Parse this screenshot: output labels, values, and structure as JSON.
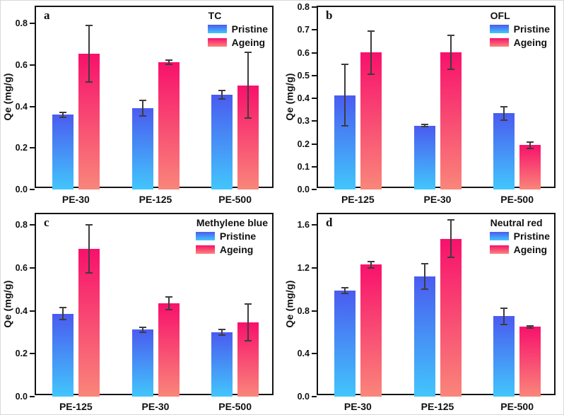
{
  "figure": {
    "series_labels": [
      "Pristine",
      "Ageing"
    ],
    "colors": {
      "pristine_top": "#4a5bf0",
      "pristine_bottom": "#42c6fc",
      "ageing_top": "#f8116c",
      "ageing_bottom": "#f9867a",
      "frame": "#141414",
      "error_bar": "#3d3d3d"
    }
  },
  "chart_data": [
    {
      "type": "bar",
      "panel": "a",
      "legend_title": "TC",
      "ylabel": "Qe (mg/g)",
      "legend_position": "top-right",
      "grid": false,
      "categories": [
        "PE-30",
        "PE-125",
        "PE-500"
      ],
      "series": [
        {
          "name": "Pristine",
          "values": [
            0.36,
            0.392,
            0.458
          ],
          "errors": [
            0.012,
            0.038,
            0.02
          ]
        },
        {
          "name": "Ageing",
          "values": [
            0.655,
            0.615,
            0.503
          ],
          "errors": [
            0.138,
            0.01,
            0.158
          ]
        }
      ],
      "ylim": [
        0,
        0.88
      ],
      "yticks": [
        0.0,
        0.2,
        0.4,
        0.6,
        0.8
      ],
      "ytick_labels": [
        "0.0",
        "0.2",
        "0.4",
        "0.6",
        "0.8"
      ]
    },
    {
      "type": "bar",
      "panel": "b",
      "legend_title": "OFL",
      "ylabel": "Qe (mg/g)",
      "legend_position": "top-right",
      "grid": false,
      "categories": [
        "PE-125",
        "PE-30",
        "PE-500"
      ],
      "series": [
        {
          "name": "Pristine",
          "values": [
            0.413,
            0.28,
            0.334
          ],
          "errors": [
            0.135,
            0.005,
            0.03
          ]
        },
        {
          "name": "Ageing",
          "values": [
            0.601,
            0.601,
            0.194
          ],
          "errors": [
            0.095,
            0.075,
            0.013
          ]
        }
      ],
      "ylim": [
        0,
        0.8
      ],
      "yticks": [
        0.0,
        0.1,
        0.2,
        0.3,
        0.4,
        0.5,
        0.6,
        0.7,
        0.8
      ],
      "ytick_labels": [
        "0.0",
        "0.1",
        "0.2",
        "0.3",
        "0.4",
        "0.5",
        "0.6",
        "0.7",
        "0.8"
      ]
    },
    {
      "type": "bar",
      "panel": "c",
      "legend_title": "Methylene blue",
      "ylabel": "Qe (mg/g)",
      "legend_position": "top-right",
      "grid": false,
      "categories": [
        "PE-125",
        "PE-30",
        "PE-500"
      ],
      "series": [
        {
          "name": "Pristine",
          "values": [
            0.386,
            0.312,
            0.3
          ],
          "errors": [
            0.028,
            0.012,
            0.012
          ]
        },
        {
          "name": "Ageing",
          "values": [
            0.687,
            0.435,
            0.345
          ],
          "errors": [
            0.112,
            0.03,
            0.086
          ]
        }
      ],
      "ylim": [
        0,
        0.85
      ],
      "yticks": [
        0.0,
        0.2,
        0.4,
        0.6,
        0.8
      ],
      "ytick_labels": [
        "0.0",
        "0.2",
        "0.4",
        "0.6",
        "0.8"
      ]
    },
    {
      "type": "bar",
      "panel": "d",
      "legend_title": "Neutral red",
      "ylabel": "Qe (mg/g)",
      "legend_position": "top-right",
      "grid": false,
      "categories": [
        "PE-30",
        "PE-125",
        "PE-500"
      ],
      "series": [
        {
          "name": "Pristine",
          "values": [
            0.99,
            1.12,
            0.75
          ],
          "errors": [
            0.025,
            0.12,
            0.075
          ]
        },
        {
          "name": "Ageing",
          "values": [
            1.23,
            1.47,
            0.65
          ],
          "errors": [
            0.03,
            0.175,
            0.008
          ]
        }
      ],
      "ylim": [
        0,
        1.7
      ],
      "yticks": [
        0.0,
        0.4,
        0.8,
        1.2,
        1.6
      ],
      "ytick_labels": [
        "0.0",
        "0.4",
        "0.8",
        "1.2",
        "1.6"
      ]
    }
  ]
}
